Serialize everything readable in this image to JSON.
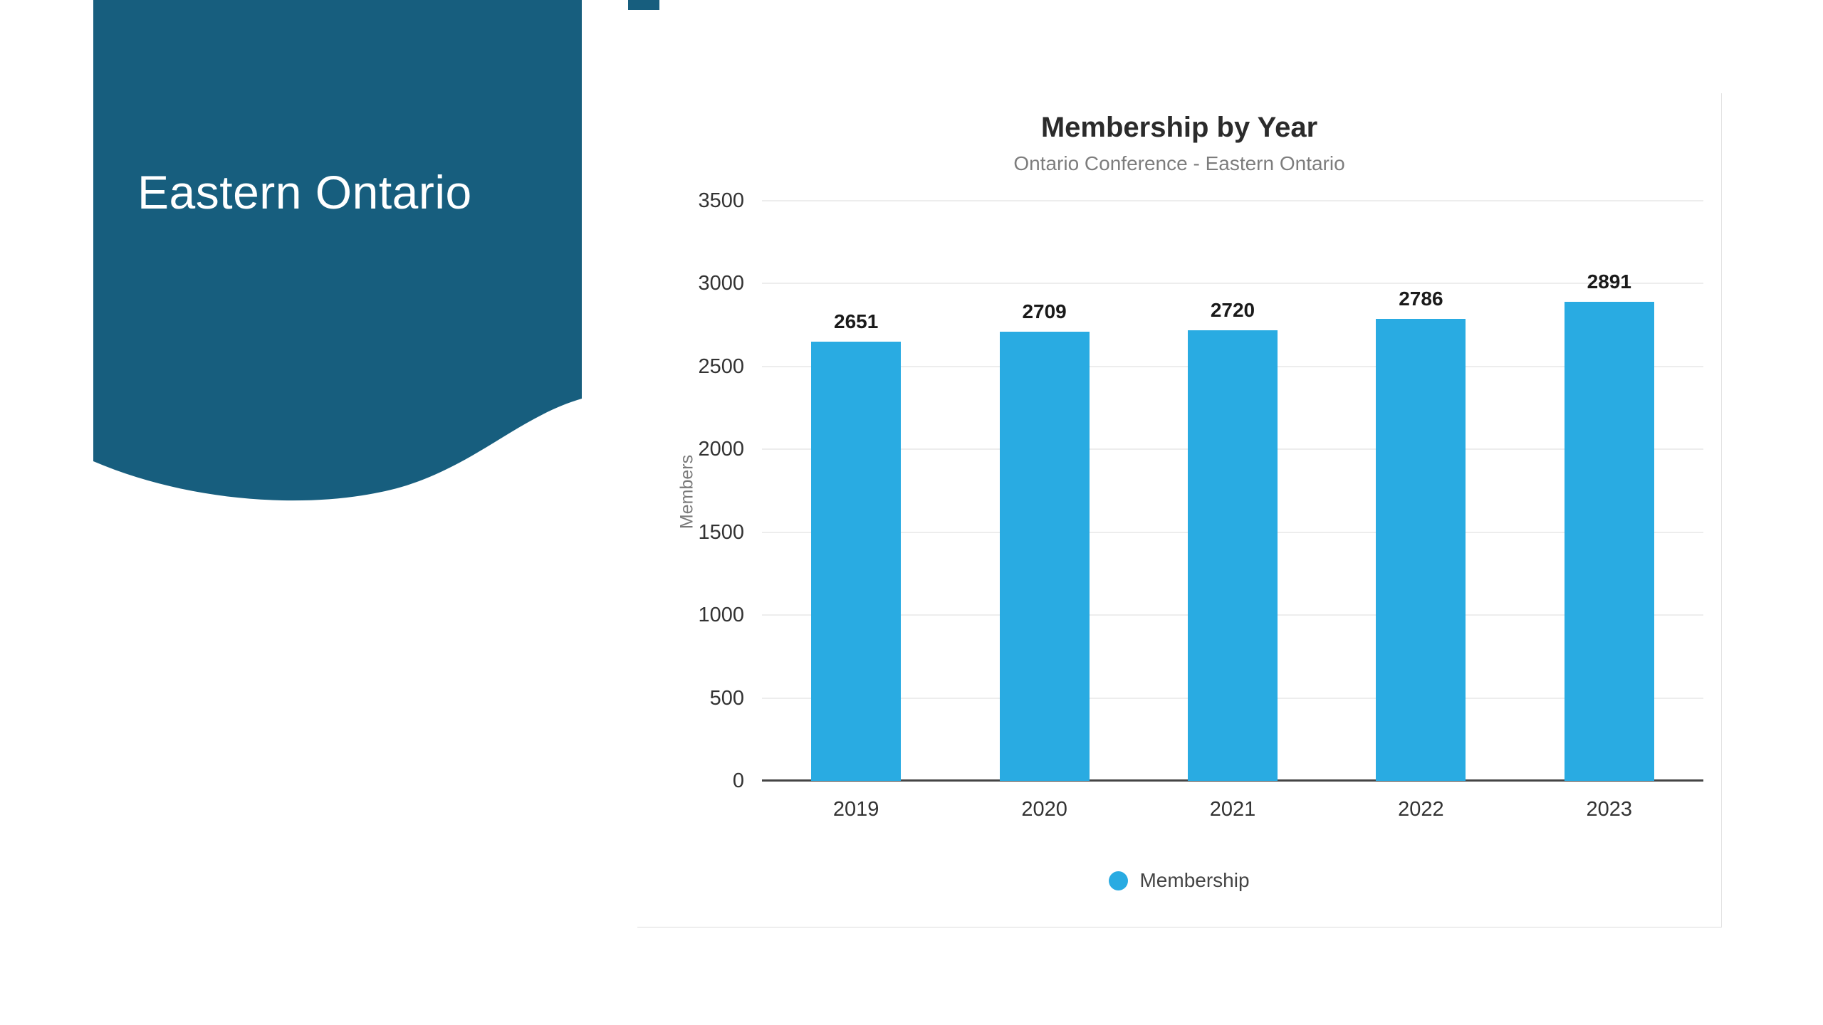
{
  "panel": {
    "title": "Eastern Ontario",
    "color": "#175E7E"
  },
  "chart_data": {
    "type": "bar",
    "title": "Membership by Year",
    "subtitle": "Ontario Conference - Eastern Ontario",
    "categories": [
      "2019",
      "2020",
      "2021",
      "2022",
      "2023"
    ],
    "series": [
      {
        "name": "Membership",
        "values": [
          2651,
          2709,
          2720,
          2786,
          2891
        ]
      }
    ],
    "xlabel": "",
    "ylabel": "Members",
    "ylim": [
      0,
      3500
    ],
    "ytick_step": 500,
    "bar_color": "#29ABE2",
    "grid": true,
    "legend_position": "bottom",
    "value_labels": true
  }
}
